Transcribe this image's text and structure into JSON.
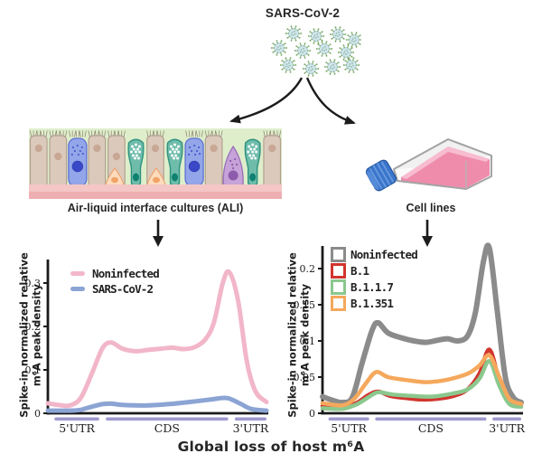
{
  "title": "SARS-CoV-2",
  "branch_left_label": "Air-liquid interface cultures (ALI)",
  "branch_right_label": "Cell lines",
  "caption": "Global loss of host m⁶A",
  "colors": {
    "arrow": "#1c1c1c",
    "axis": "#1a1a1a",
    "segment_bar": "#9f9bce",
    "virus_body": "#d3e6ec",
    "virus_spike": "#72a864",
    "flask_media": "#ef8cab",
    "flask_cap": "#3b76cc"
  },
  "icons": {
    "virus_cluster": "virus-cluster-icon",
    "split_arrow_left": "curved-arrow-left-icon",
    "split_arrow_right": "curved-arrow-right-icon",
    "ali_illustration": "airway-epithelium-illustration",
    "flask": "cell-culture-flask-icon",
    "down_arrow": "down-arrow-icon"
  },
  "chart_data": [
    {
      "type": "line",
      "title": "",
      "xlabel": "",
      "ylabel": "Spike-in normalized relative m⁶A peak density",
      "ylabel_lines": [
        "Spike-in normalized relative",
        "m⁶A peak density"
      ],
      "ytick_labels": [
        "0",
        "0.1",
        "0.2",
        "0.3"
      ],
      "ytick_values": [
        0,
        0.1,
        0.2,
        0.3
      ],
      "ylim": [
        0,
        0.35
      ],
      "xlim": [
        0,
        1
      ],
      "grid": false,
      "legend_position": "top-left",
      "x_segments": [
        {
          "label": "5'UTR",
          "from": 0.03,
          "to": 0.235
        },
        {
          "label": "CDS",
          "from": 0.265,
          "to": 0.825
        },
        {
          "label": "3'UTR",
          "from": 0.855,
          "to": 1.0
        }
      ],
      "series": [
        {
          "name": "Noninfected",
          "color": "#f2b6c9",
          "stroke_width": 5,
          "x": [
            0,
            0.05,
            0.1,
            0.15,
            0.2,
            0.25,
            0.29,
            0.34,
            0.4,
            0.46,
            0.52,
            0.57,
            0.62,
            0.67,
            0.72,
            0.76,
            0.8,
            0.83,
            0.87,
            0.91,
            0.95,
            1
          ],
          "y": [
            0.023,
            0.019,
            0.018,
            0.035,
            0.09,
            0.15,
            0.163,
            0.149,
            0.143,
            0.146,
            0.149,
            0.151,
            0.148,
            0.152,
            0.17,
            0.21,
            0.3,
            0.325,
            0.26,
            0.12,
            0.05,
            0.026
          ]
        },
        {
          "name": "SARS-CoV-2",
          "color": "#8ba4d4",
          "stroke_width": 5,
          "x": [
            0,
            0.1,
            0.15,
            0.2,
            0.25,
            0.29,
            0.35,
            0.45,
            0.55,
            0.65,
            0.75,
            0.82,
            0.88,
            0.93,
            1
          ],
          "y": [
            0.006,
            0.006,
            0.008,
            0.015,
            0.021,
            0.022,
            0.019,
            0.018,
            0.021,
            0.026,
            0.032,
            0.035,
            0.022,
            0.01,
            0.006
          ]
        }
      ]
    },
    {
      "type": "line",
      "title": "",
      "xlabel": "",
      "ylabel": "Spike-in normalized relative m⁶A peak density",
      "ylabel_lines": [
        "Spike-in normalized relative",
        "m⁶A peak density"
      ],
      "ytick_labels": [
        "0",
        "0.05",
        "0.1",
        "0.15",
        "0.2"
      ],
      "ytick_values": [
        0,
        0.05,
        0.1,
        0.15,
        0.2
      ],
      "ylim": [
        0,
        0.235
      ],
      "xlim": [
        0,
        1
      ],
      "grid": false,
      "legend_position": "top-left",
      "x_segments": [
        {
          "label": "5'UTR",
          "from": 0.03,
          "to": 0.235
        },
        {
          "label": "CDS",
          "from": 0.265,
          "to": 0.825
        },
        {
          "label": "3'UTR",
          "from": 0.855,
          "to": 1.0
        }
      ],
      "series": [
        {
          "name": "Noninfected",
          "color": "#8b8b8b",
          "stroke_width": 6,
          "x": [
            0,
            0.05,
            0.1,
            0.15,
            0.2,
            0.25,
            0.28,
            0.33,
            0.4,
            0.46,
            0.52,
            0.58,
            0.63,
            0.68,
            0.73,
            0.77,
            0.81,
            0.84,
            0.88,
            0.92,
            0.96,
            1
          ],
          "y": [
            0.023,
            0.018,
            0.015,
            0.022,
            0.07,
            0.115,
            0.125,
            0.111,
            0.104,
            0.1,
            0.098,
            0.101,
            0.103,
            0.1,
            0.107,
            0.14,
            0.21,
            0.228,
            0.14,
            0.05,
            0.022,
            0.015
          ]
        },
        {
          "name": "B.1",
          "color": "#d2342e",
          "stroke_width": 4.5,
          "x": [
            0,
            0.1,
            0.17,
            0.23,
            0.28,
            0.34,
            0.42,
            0.5,
            0.58,
            0.66,
            0.73,
            0.79,
            0.84,
            0.89,
            0.94,
            1
          ],
          "y": [
            0.01,
            0.008,
            0.014,
            0.025,
            0.03,
            0.024,
            0.021,
            0.019,
            0.02,
            0.024,
            0.033,
            0.055,
            0.088,
            0.045,
            0.016,
            0.012
          ]
        },
        {
          "name": "B.1.1.7",
          "color": "#8bc88e",
          "stroke_width": 4.5,
          "x": [
            0,
            0.1,
            0.17,
            0.23,
            0.28,
            0.35,
            0.45,
            0.55,
            0.65,
            0.73,
            0.79,
            0.84,
            0.89,
            0.94,
            1
          ],
          "y": [
            0.007,
            0.006,
            0.012,
            0.022,
            0.029,
            0.026,
            0.024,
            0.023,
            0.027,
            0.033,
            0.048,
            0.072,
            0.038,
            0.013,
            0.009
          ]
        },
        {
          "name": "B.1.351",
          "color": "#f5a85c",
          "stroke_width": 4.5,
          "x": [
            0,
            0.1,
            0.16,
            0.22,
            0.27,
            0.33,
            0.42,
            0.52,
            0.6,
            0.68,
            0.74,
            0.79,
            0.84,
            0.89,
            0.94,
            1
          ],
          "y": [
            0.014,
            0.011,
            0.02,
            0.042,
            0.057,
            0.05,
            0.046,
            0.043,
            0.045,
            0.05,
            0.056,
            0.066,
            0.08,
            0.05,
            0.02,
            0.013
          ]
        }
      ]
    }
  ]
}
